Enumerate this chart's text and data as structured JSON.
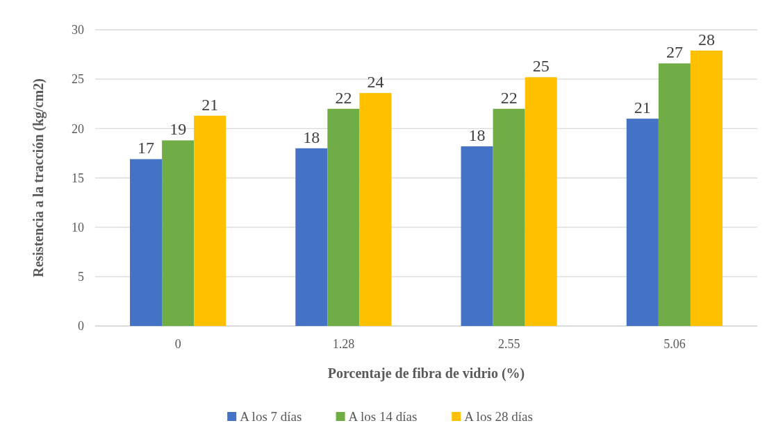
{
  "chart_data": {
    "type": "bar",
    "xlabel": "Porcentaje de fibra de vidrio (%)",
    "ylabel": "Resistencia a la tracción (kg/cm2)",
    "categories": [
      "0",
      "1.28",
      "2.55",
      "5.06"
    ],
    "series": [
      {
        "name": "A los 7 días",
        "color": "#4472c4",
        "values": [
          16.9,
          18.0,
          18.2,
          21.0
        ],
        "value_labels": [
          "17",
          "18",
          "18",
          "21"
        ]
      },
      {
        "name": "A los 14 días",
        "color": "#70ad47",
        "values": [
          18.8,
          22.0,
          22.0,
          26.6
        ],
        "value_labels": [
          "19",
          "22",
          "22",
          "27"
        ]
      },
      {
        "name": "A los 28 días",
        "color": "#ffc000",
        "values": [
          21.3,
          23.6,
          25.2,
          27.9
        ],
        "value_labels": [
          "21",
          "24",
          "25",
          "28"
        ]
      }
    ],
    "ylim": [
      0,
      30
    ],
    "yticks": [
      0,
      5,
      10,
      15,
      20,
      25,
      30
    ],
    "grid": "y",
    "legend": "bottom"
  }
}
